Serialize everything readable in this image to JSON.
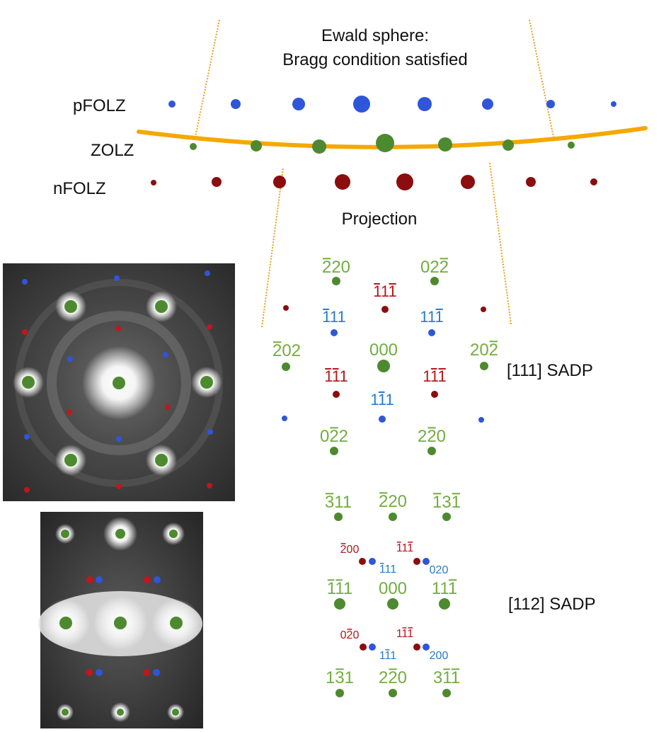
{
  "top": {
    "ewald_line1": "Ewald sphere:",
    "ewald_line2": "Bragg condition satisfied",
    "projection": "Projection",
    "layers": [
      "pFOLZ",
      "ZOLZ",
      "nFOLZ"
    ]
  },
  "sadp111": {
    "title": "[111] SADP",
    "labels": [
      {
        "k": "g220m",
        "parts": [
          [
            "2",
            1
          ],
          [
            "20",
            0
          ]
        ],
        "color": "green"
      },
      {
        "k": "g022m",
        "parts": [
          [
            "02",
            0
          ],
          [
            "2",
            1
          ]
        ],
        "color": "green"
      },
      {
        "k": "r111m",
        "parts": [
          [
            "1",
            1
          ],
          [
            "1",
            0
          ],
          [
            "1",
            1
          ]
        ],
        "color": "red"
      },
      {
        "k": "b111a",
        "parts": [
          [
            "1",
            1
          ],
          [
            "11",
            0
          ]
        ],
        "color": "blue"
      },
      {
        "k": "b111b",
        "parts": [
          [
            "11",
            0
          ],
          [
            "1",
            1
          ]
        ],
        "color": "blue"
      },
      {
        "k": "g202m",
        "parts": [
          [
            "2",
            1
          ],
          [
            "02",
            0
          ]
        ],
        "color": "green"
      },
      {
        "k": "g000",
        "parts": [
          [
            "000",
            0
          ]
        ],
        "color": "green"
      },
      {
        "k": "g202b",
        "parts": [
          [
            "20",
            0
          ],
          [
            "2",
            1
          ]
        ],
        "color": "green"
      },
      {
        "k": "r111a",
        "parts": [
          [
            "1",
            1
          ],
          [
            "1",
            1
          ],
          [
            "1",
            0
          ]
        ],
        "color": "red"
      },
      {
        "k": "r111b",
        "parts": [
          [
            "1",
            0
          ],
          [
            "1",
            1
          ],
          [
            "1",
            1
          ]
        ],
        "color": "red"
      },
      {
        "k": "b111c",
        "parts": [
          [
            "1",
            0
          ],
          [
            "1",
            1
          ],
          [
            "1",
            0
          ]
        ],
        "color": "blue"
      },
      {
        "k": "g022b",
        "parts": [
          [
            "0",
            0
          ],
          [
            "2",
            1
          ],
          [
            "2",
            0
          ]
        ],
        "color": "green"
      },
      {
        "k": "g220b",
        "parts": [
          [
            "2",
            0
          ],
          [
            "2",
            1
          ],
          [
            "0",
            0
          ]
        ],
        "color": "green"
      }
    ]
  },
  "sadp112": {
    "title": "[112] SADP",
    "labels": [
      {
        "k": "g311",
        "parts": [
          [
            "3",
            1
          ],
          [
            "11",
            0
          ]
        ],
        "color": "green"
      },
      {
        "k": "g220",
        "parts": [
          [
            "2",
            1
          ],
          [
            "20",
            0
          ]
        ],
        "color": "green"
      },
      {
        "k": "g131",
        "parts": [
          [
            "1",
            1
          ],
          [
            "3",
            0
          ],
          [
            "1",
            1
          ]
        ],
        "color": "green"
      },
      {
        "k": "r200",
        "parts": [
          [
            "2",
            1
          ],
          [
            "00",
            0
          ]
        ],
        "color": "red"
      },
      {
        "k": "r111t",
        "parts": [
          [
            "1",
            1
          ],
          [
            "1",
            0
          ],
          [
            "1",
            1
          ]
        ],
        "color": "red"
      },
      {
        "k": "b111t",
        "parts": [
          [
            "1",
            1
          ],
          [
            "11",
            0
          ]
        ],
        "color": "blue"
      },
      {
        "k": "b020",
        "parts": [
          [
            "020",
            0
          ]
        ],
        "color": "blue"
      },
      {
        "k": "g111a",
        "parts": [
          [
            "1",
            1
          ],
          [
            "1",
            1
          ],
          [
            "1",
            0
          ]
        ],
        "color": "green"
      },
      {
        "k": "g000",
        "parts": [
          [
            "000",
            0
          ]
        ],
        "color": "green"
      },
      {
        "k": "g111b",
        "parts": [
          [
            "11",
            0
          ],
          [
            "1",
            1
          ]
        ],
        "color": "green"
      },
      {
        "k": "r020",
        "parts": [
          [
            "0",
            0
          ],
          [
            "2",
            1
          ],
          [
            "0",
            0
          ]
        ],
        "color": "red"
      },
      {
        "k": "r111b",
        "parts": [
          [
            "1",
            0
          ],
          [
            "1",
            1
          ],
          [
            "1",
            1
          ]
        ],
        "color": "red"
      },
      {
        "k": "b111b",
        "parts": [
          [
            "1",
            0
          ],
          [
            "1",
            1
          ],
          [
            "1",
            0
          ]
        ],
        "color": "blue"
      },
      {
        "k": "b200",
        "parts": [
          [
            "200",
            0
          ]
        ],
        "color": "blue"
      },
      {
        "k": "g131b",
        "parts": [
          [
            "1",
            0
          ],
          [
            "3",
            1
          ],
          [
            "1",
            0
          ]
        ],
        "color": "green"
      },
      {
        "k": "g220b",
        "parts": [
          [
            "2",
            0
          ],
          [
            "2",
            1
          ],
          [
            "0",
            0
          ]
        ],
        "color": "green"
      },
      {
        "k": "g311b",
        "parts": [
          [
            "3",
            0
          ],
          [
            "1",
            1
          ],
          [
            "1",
            1
          ]
        ],
        "color": "green"
      }
    ]
  },
  "colors": {
    "blue": "#2f56d8",
    "blue_text": "#2a7bc4",
    "green": "#4d8a2f",
    "green_text": "#72ad3f",
    "red": "#8b0d0d",
    "red_text": "#b0171c",
    "orange": "#f5a800",
    "orange_dot": "#e8a020",
    "text": "#111111"
  }
}
